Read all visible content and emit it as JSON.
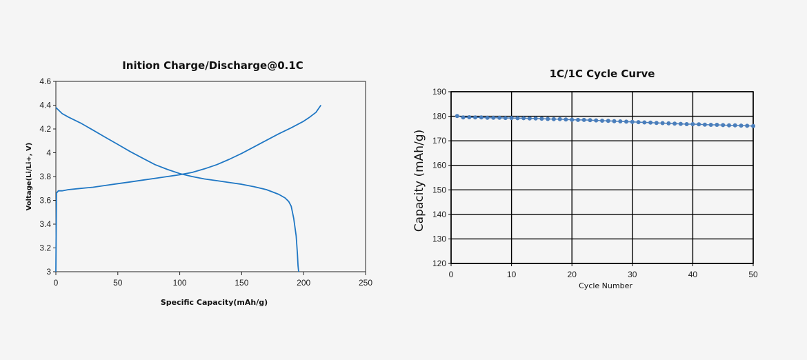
{
  "chart_data": [
    {
      "type": "line",
      "title": "Inition Charge/Discharge@0.1C",
      "xlabel": "Specific Capacity(mAh/g)",
      "ylabel": "Voltage(Li/Li+, V)",
      "xlim": [
        0,
        250
      ],
      "ylim": [
        3,
        4.6
      ],
      "x_ticks": [
        "0",
        "50",
        "100",
        "150",
        "200",
        "250"
      ],
      "y_ticks": [
        "3",
        "3.2",
        "3.4",
        "3.6",
        "3.8",
        "4",
        "4.2",
        "4.4",
        "4.6"
      ],
      "grid": false,
      "color": "#1f77c4",
      "series": [
        {
          "x": [
            0,
            0.5,
            2,
            5,
            10,
            20,
            30,
            40,
            50,
            60,
            70,
            80,
            90,
            100,
            110,
            120,
            130,
            140,
            150,
            160,
            170,
            180,
            190,
            200,
            205,
            210,
            214
          ],
          "y": [
            3.0,
            3.66,
            3.68,
            3.68,
            3.69,
            3.7,
            3.71,
            3.725,
            3.74,
            3.755,
            3.77,
            3.785,
            3.8,
            3.815,
            3.835,
            3.865,
            3.9,
            3.945,
            3.995,
            4.05,
            4.105,
            4.16,
            4.21,
            4.265,
            4.3,
            4.34,
            4.4
          ]
        },
        {
          "x": [
            0,
            5,
            10,
            20,
            30,
            40,
            50,
            60,
            70,
            80,
            90,
            100,
            110,
            120,
            130,
            140,
            150,
            160,
            170,
            175,
            180,
            185,
            188,
            190,
            192,
            194,
            195,
            195.5,
            196
          ],
          "y": [
            4.38,
            4.33,
            4.3,
            4.25,
            4.19,
            4.13,
            4.07,
            4.01,
            3.955,
            3.9,
            3.86,
            3.825,
            3.8,
            3.78,
            3.765,
            3.75,
            3.735,
            3.715,
            3.69,
            3.67,
            3.65,
            3.62,
            3.59,
            3.55,
            3.45,
            3.3,
            3.15,
            3.05,
            3.0
          ]
        }
      ]
    },
    {
      "type": "scatter",
      "title": "1C/1C Cycle Curve",
      "xlabel": "Cycle Number",
      "ylabel": "Capacity (mAh/g)",
      "xlim": [
        0,
        50
      ],
      "ylim": [
        120,
        190
      ],
      "x_ticks": [
        "0",
        "10",
        "20",
        "30",
        "40",
        "50"
      ],
      "y_ticks": [
        "120",
        "130",
        "140",
        "150",
        "160",
        "170",
        "180",
        "190"
      ],
      "grid": true,
      "color": "#4a7ebb",
      "series": [
        {
          "x": [
            1,
            2,
            3,
            4,
            5,
            6,
            7,
            8,
            9,
            10,
            11,
            12,
            13,
            14,
            15,
            16,
            17,
            18,
            19,
            20,
            21,
            22,
            23,
            24,
            25,
            26,
            27,
            28,
            29,
            30,
            31,
            32,
            33,
            34,
            35,
            36,
            37,
            38,
            39,
            40,
            41,
            42,
            43,
            44,
            45,
            46,
            47,
            48,
            49,
            50
          ],
          "y": [
            180.1,
            179.5,
            179.6,
            179.5,
            179.5,
            179.4,
            179.4,
            179.4,
            179.3,
            179.3,
            179.2,
            179.2,
            179.1,
            179.1,
            179.0,
            178.9,
            178.8,
            178.8,
            178.7,
            178.6,
            178.5,
            178.5,
            178.4,
            178.3,
            178.2,
            178.1,
            178.0,
            177.9,
            177.8,
            177.7,
            177.6,
            177.5,
            177.4,
            177.3,
            177.2,
            177.1,
            177.0,
            176.9,
            176.8,
            176.8,
            176.7,
            176.6,
            176.5,
            176.5,
            176.4,
            176.3,
            176.3,
            176.2,
            176.1,
            176.0
          ]
        }
      ]
    }
  ]
}
